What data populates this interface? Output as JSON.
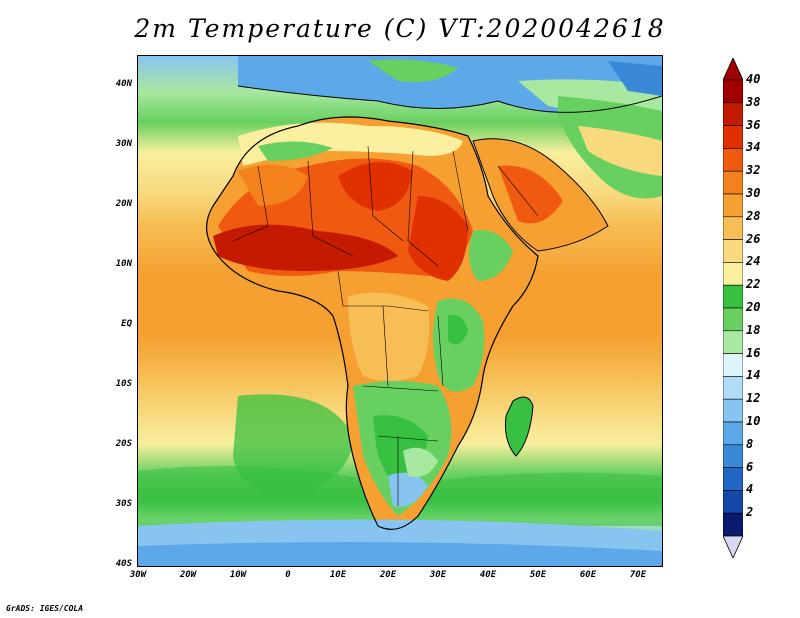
{
  "title": "2m Temperature (C) VT:2020042618",
  "credit": "GrADS: IGES/COLA",
  "axes": {
    "lat_labels": [
      "40N",
      "30N",
      "20N",
      "10N",
      "EQ",
      "10S",
      "20S",
      "30S",
      "40S"
    ],
    "lat_values": [
      40,
      30,
      20,
      10,
      0,
      -10,
      -20,
      -30,
      -40
    ],
    "lon_labels": [
      "30W",
      "20W",
      "10W",
      "0",
      "10E",
      "20E",
      "30E",
      "40E",
      "50E",
      "60E",
      "70E"
    ],
    "lon_values": [
      -30,
      -20,
      -10,
      0,
      10,
      20,
      30,
      40,
      50,
      60,
      70
    ],
    "lon_range": [
      -30,
      75
    ],
    "lat_range": [
      -40,
      45
    ]
  },
  "colorbar": {
    "labels": [
      "40",
      "38",
      "36",
      "34",
      "32",
      "30",
      "28",
      "26",
      "24",
      "22",
      "20",
      "18",
      "16",
      "14",
      "12",
      "10",
      "8",
      "6",
      "4",
      "2"
    ],
    "colors": [
      "#a00000",
      "#c41a00",
      "#e03000",
      "#f05a10",
      "#f4821c",
      "#f5a030",
      "#f6be55",
      "#f8d97e",
      "#f9ef9e",
      "#38c040",
      "#68d060",
      "#a8e8a0",
      "#dcf5ff",
      "#b0dcf8",
      "#88c4f0",
      "#5ca8e8",
      "#3a88d8",
      "#2266c4",
      "#1448a8",
      "#0a1a6e"
    ],
    "over_color": "#a00000",
    "under_color": "#d8d8f0"
  },
  "chart_data": {
    "type": "heatmap",
    "title": "2m Temperature (C) VT:2020042618",
    "variable": "2m Temperature",
    "units": "C",
    "valid_time": "2020042618",
    "lon_range": [
      -30,
      75
    ],
    "lat_range": [
      -40,
      45
    ],
    "contour_levels": [
      2,
      4,
      6,
      8,
      10,
      12,
      14,
      16,
      18,
      20,
      22,
      24,
      26,
      28,
      30,
      32,
      34,
      36,
      38,
      40
    ]
  }
}
